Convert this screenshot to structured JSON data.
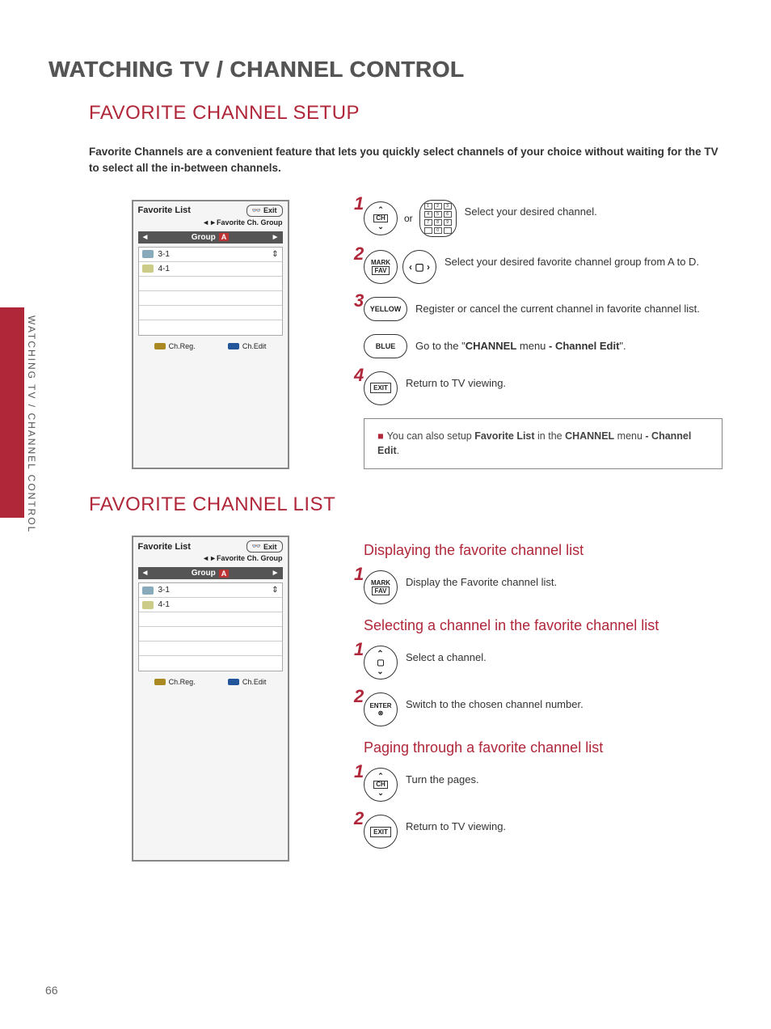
{
  "page_number": "66",
  "side_label": "WATCHING TV / CHANNEL CONTROL",
  "main_title": "WATCHING TV / CHANNEL CONTROL",
  "section1": {
    "title": "FAVORITE CHANNEL SETUP",
    "intro": "Favorite Channels are a convenient feature that lets you quickly select channels of your choice without waiting for the TV to select all the in-between channels.",
    "osd": {
      "title": "Favorite List",
      "exit": "Exit",
      "subtitle": "◄►Favorite Ch. Group",
      "group_label": "Group",
      "group_badge": "A",
      "rows": [
        "3-1",
        "4-1",
        "",
        "",
        "",
        ""
      ],
      "footer_left": "Ch.Reg.",
      "footer_right": "Ch.Edit"
    },
    "steps": {
      "s1": {
        "num": "1",
        "text": "Select your desired channel.",
        "or": "or"
      },
      "s2": {
        "num": "2",
        "text": "Select your desired favorite channel group from A to D.",
        "btn_top": "MARK",
        "btn_bot": "FAV"
      },
      "s3": {
        "num": "3",
        "btn": "YELLOW",
        "text": "Register or cancel the current channel in favorite channel list."
      },
      "s3b": {
        "btn": "BLUE",
        "text_a": "Go to the \"",
        "text_b": "CHANNEL",
        "text_c": " menu ",
        "text_d": "- Channel Edit",
        "text_e": "\"."
      },
      "s4": {
        "num": "4",
        "btn": "EXIT",
        "text": "Return to TV viewing."
      }
    },
    "note": {
      "a": "You can also setup ",
      "b": "Favorite List",
      "c": " in the ",
      "d": "CHANNEL",
      "e": " menu ",
      "f": "- Channel Edit",
      "g": "."
    }
  },
  "section2": {
    "title": "FAVORITE CHANNEL LIST",
    "osd": {
      "title": "Favorite List",
      "exit": "Exit",
      "subtitle": "◄►Favorite Ch. Group",
      "group_label": "Group",
      "group_badge": "A",
      "rows": [
        "3-1",
        "4-1",
        "",
        "",
        "",
        ""
      ],
      "footer_left": "Ch.Reg.",
      "footer_right": "Ch.Edit"
    },
    "sub1": {
      "title": "Displaying the favorite channel list",
      "step": {
        "num": "1",
        "btn_top": "MARK",
        "btn_bot": "FAV",
        "text": "Display the Favorite channel list."
      }
    },
    "sub2": {
      "title": "Selecting a channel in the favorite channel list",
      "step1": {
        "num": "1",
        "text": "Select a channel."
      },
      "step2": {
        "num": "2",
        "btn": "ENTER",
        "text": "Switch to the chosen channel number."
      }
    },
    "sub3": {
      "title": "Paging through a favorite channel list",
      "step1": {
        "num": "1",
        "text": "Turn the pages."
      },
      "step2": {
        "num": "2",
        "btn": "EXIT",
        "text": "Return to TV viewing."
      }
    }
  },
  "colors": {
    "accent": "#b0273a"
  }
}
